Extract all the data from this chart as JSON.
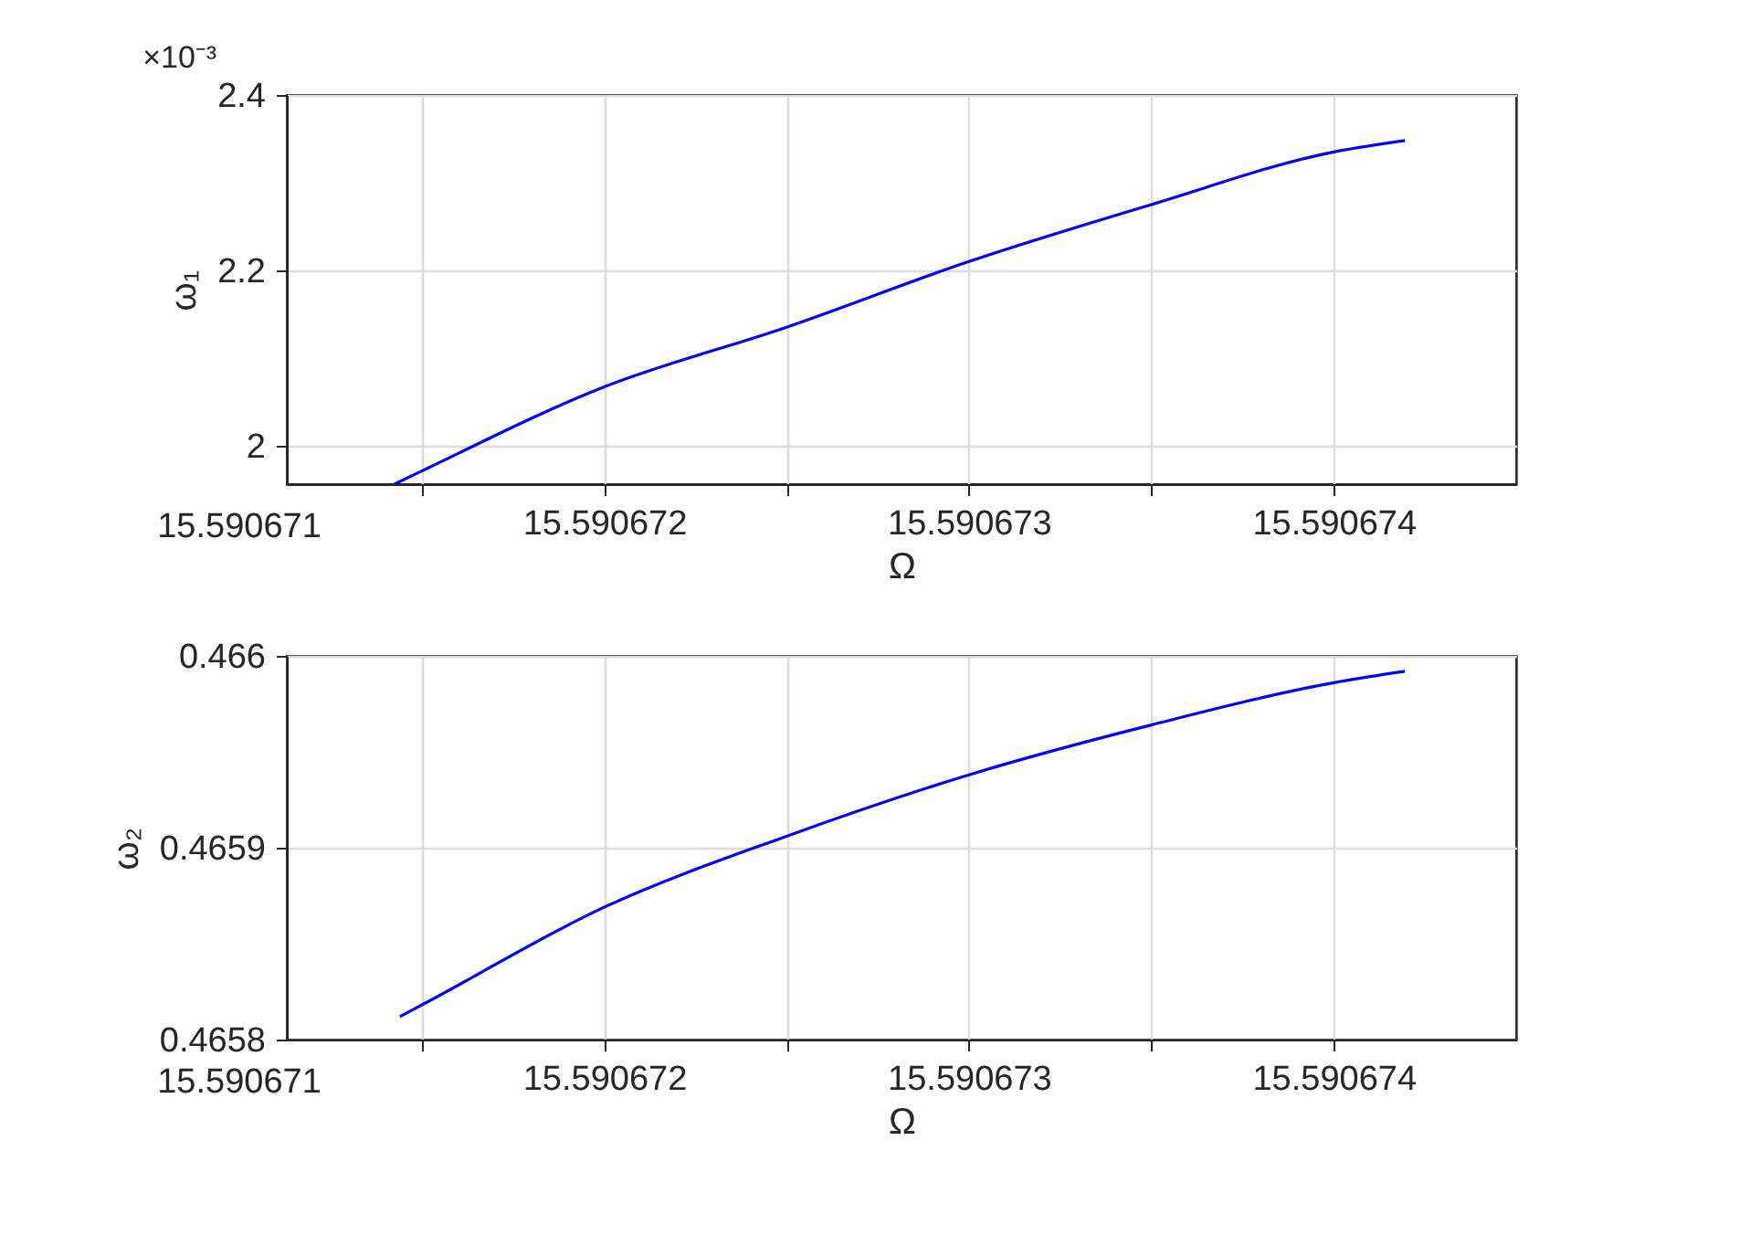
{
  "chart_data": [
    {
      "type": "line",
      "xlabel": "Ω",
      "ylabel": "ω₁",
      "annotations": [
        "×10⁻³",
        "15.590671"
      ],
      "series": [
        {
          "color": "#0000ff",
          "x": [
            15.590671425,
            15.5906715,
            15.590672,
            15.5906725,
            15.590673,
            15.5906735,
            15.590674,
            15.590674195
          ],
          "values": [
            1.956,
            1.971,
            2.067,
            2.135,
            2.21,
            2.275,
            2.335,
            2.348
          ]
        }
      ],
      "xlim": [
        15.59067113,
        15.5906745
      ],
      "ylim": [
        1.956,
        2.4
      ],
      "xticks": [
        {
          "value": 15.5906715,
          "label": null
        },
        15.590672,
        {
          "value": 15.5906725,
          "label": null
        },
        15.590673,
        {
          "value": 15.5906735,
          "label": null
        },
        15.590674
      ],
      "yticks": [
        2,
        2.2,
        2.4
      ],
      "grid": true,
      "line_style": "solid"
    },
    {
      "type": "line",
      "xlabel": "Ω",
      "ylabel": "ω₂",
      "annotations": [
        "15.590671"
      ],
      "series": [
        {
          "color": "#0000ff",
          "x": [
            15.59067144,
            15.5906715,
            15.590672,
            15.5906725,
            15.590673,
            15.5906735,
            15.590674,
            15.590674195
          ],
          "values": [
            0.465812,
            0.465818,
            0.465869,
            0.465906,
            0.465938,
            0.465964,
            0.465986,
            0.465992
          ]
        }
      ],
      "xlim": [
        15.59067113,
        15.5906745
      ],
      "ylim": [
        0.4658,
        0.466
      ],
      "xticks": [
        {
          "value": 15.5906715,
          "label": null
        },
        15.590672,
        {
          "value": 15.5906725,
          "label": null
        },
        15.590673,
        {
          "value": 15.5906735,
          "label": null
        },
        15.590674
      ],
      "yticks": [
        0.4658,
        0.4659,
        0.466
      ],
      "grid": true,
      "line_style": "solid"
    }
  ]
}
